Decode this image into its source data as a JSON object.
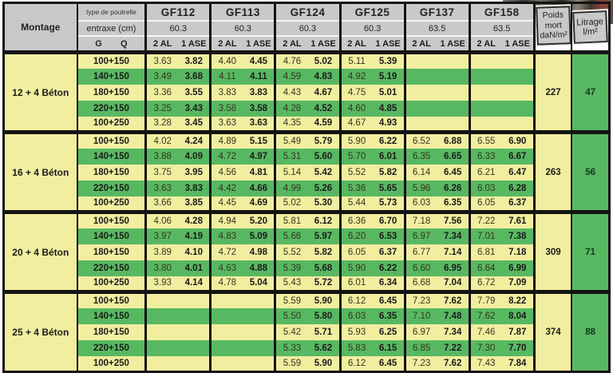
{
  "colors": {
    "row_yellow": "#F2EEA0",
    "row_green": "#58B862",
    "header_gray": "#C9C9C9",
    "border": "#141414"
  },
  "header": {
    "montage_label": "Montage",
    "type_label": "type de poutrelle",
    "entraxe_label": "entraxe (cm)",
    "g_label": "G",
    "q_label": "Q",
    "col_2al": "2 AL",
    "col_1ase": "1 ASE",
    "beams": [
      {
        "name": "GF112",
        "entraxe": "60.3"
      },
      {
        "name": "GF113",
        "entraxe": "60.3"
      },
      {
        "name": "GF124",
        "entraxe": "60.3"
      },
      {
        "name": "GF125",
        "entraxe": "60.3"
      },
      {
        "name": "GF137",
        "entraxe": "63.5"
      },
      {
        "name": "GF158",
        "entraxe": "63.5"
      }
    ],
    "poids_lines": [
      "Poids",
      "mort",
      "daN/m²"
    ],
    "litrage_lines": [
      "Litrage",
      "l/m²"
    ]
  },
  "sections": [
    {
      "montage": "12 + 4 Béton",
      "poids": "227",
      "litrage": "47",
      "rows": [
        {
          "label": "100+150",
          "values": [
            "3.63",
            "3.82",
            "4.40",
            "4.45",
            "4.76",
            "5.02",
            "5.11",
            "5.39",
            "",
            "",
            "",
            ""
          ]
        },
        {
          "label": "140+150",
          "values": [
            "3.49",
            "3.68",
            "4.11",
            "4.11",
            "4.59",
            "4.83",
            "4.92",
            "5.19",
            "",
            "",
            "",
            ""
          ]
        },
        {
          "label": "180+150",
          "values": [
            "3.36",
            "3.55",
            "3.83",
            "3.83",
            "4.43",
            "4.67",
            "4.75",
            "5.01",
            "",
            "",
            "",
            ""
          ]
        },
        {
          "label": "220+150",
          "values": [
            "3.25",
            "3.43",
            "3.58",
            "3.58",
            "4.28",
            "4.52",
            "4.60",
            "4.85",
            "",
            "",
            "",
            ""
          ]
        },
        {
          "label": "100+250",
          "values": [
            "3.28",
            "3.45",
            "3.63",
            "3.63",
            "4.35",
            "4.59",
            "4.67",
            "4.93",
            "",
            "",
            "",
            ""
          ]
        }
      ]
    },
    {
      "montage": "16 + 4 Béton",
      "poids": "263",
      "litrage": "56",
      "rows": [
        {
          "label": "100+150",
          "values": [
            "4.02",
            "4.24",
            "4.89",
            "5.15",
            "5.49",
            "5.79",
            "5.90",
            "6.22",
            "6.52",
            "6.88",
            "6.55",
            "6.90"
          ]
        },
        {
          "label": "140+150",
          "values": [
            "3.88",
            "4.09",
            "4.72",
            "4.97",
            "5.31",
            "5.60",
            "5.70",
            "6.01",
            "6.35",
            "6.65",
            "6.33",
            "6.67"
          ]
        },
        {
          "label": "180+150",
          "values": [
            "3.75",
            "3.95",
            "4.56",
            "4.81",
            "5.14",
            "5.42",
            "5.52",
            "5.82",
            "6.14",
            "6.45",
            "6.21",
            "6.47"
          ]
        },
        {
          "label": "220+150",
          "values": [
            "3.63",
            "3.83",
            "4.42",
            "4.66",
            "4.99",
            "5.26",
            "5.36",
            "5.65",
            "5.96",
            "6.26",
            "6.03",
            "6.28"
          ]
        },
        {
          "label": "100+250",
          "values": [
            "3.66",
            "3.85",
            "4.45",
            "4.69",
            "5.02",
            "5.30",
            "5.44",
            "5.73",
            "6.03",
            "6.35",
            "6.05",
            "6.37"
          ]
        }
      ]
    },
    {
      "montage": "20 + 4 Béton",
      "poids": "309",
      "litrage": "71",
      "rows": [
        {
          "label": "100+150",
          "values": [
            "4.06",
            "4.28",
            "4.94",
            "5.20",
            "5.81",
            "6.12",
            "6.36",
            "6.70",
            "7.18",
            "7.56",
            "7.22",
            "7.61"
          ]
        },
        {
          "label": "140+150",
          "values": [
            "3.97",
            "4.19",
            "4.83",
            "5.09",
            "5.66",
            "5.97",
            "6.20",
            "6.53",
            "6.97",
            "7.34",
            "7.01",
            "7.38"
          ]
        },
        {
          "label": "180+150",
          "values": [
            "3.89",
            "4.10",
            "4.72",
            "4.98",
            "5.52",
            "5.82",
            "6.05",
            "6.37",
            "6.77",
            "7.14",
            "6.81",
            "7.18"
          ]
        },
        {
          "label": "220+150",
          "values": [
            "3.80",
            "4.01",
            "4.63",
            "4.88",
            "5.39",
            "5.68",
            "5.90",
            "6.22",
            "6.60",
            "6.95",
            "6.64",
            "6.99"
          ]
        },
        {
          "label": "100+250",
          "values": [
            "3.93",
            "4.14",
            "4.78",
            "5.04",
            "5.43",
            "5.72",
            "6.01",
            "6.34",
            "6.68",
            "7.04",
            "6.72",
            "7.09"
          ]
        }
      ]
    },
    {
      "montage": "25 + 4 Béton",
      "poids": "374",
      "litrage": "88",
      "rows": [
        {
          "label": "100+150",
          "values": [
            "",
            "",
            "",
            "",
            "5.59",
            "5.90",
            "6.12",
            "6.45",
            "7.23",
            "7.62",
            "7.79",
            "8.22"
          ]
        },
        {
          "label": "140+150",
          "values": [
            "",
            "",
            "",
            "",
            "5.50",
            "5.80",
            "6.03",
            "6.35",
            "7.10",
            "7.48",
            "7.62",
            "8.04"
          ]
        },
        {
          "label": "180+150",
          "values": [
            "",
            "",
            "",
            "",
            "5.42",
            "5.71",
            "5.93",
            "6.25",
            "6.97",
            "7.34",
            "7.46",
            "7.87"
          ]
        },
        {
          "label": "220+150",
          "values": [
            "",
            "",
            "",
            "",
            "5.33",
            "5.62",
            "5.83",
            "6.15",
            "6.85",
            "7.22",
            "7.30",
            "7.70"
          ]
        },
        {
          "label": "100+250",
          "values": [
            "",
            "",
            "",
            "",
            "5.59",
            "5.90",
            "6.12",
            "6.45",
            "7.23",
            "7.62",
            "7.43",
            "7.84"
          ]
        }
      ]
    }
  ]
}
